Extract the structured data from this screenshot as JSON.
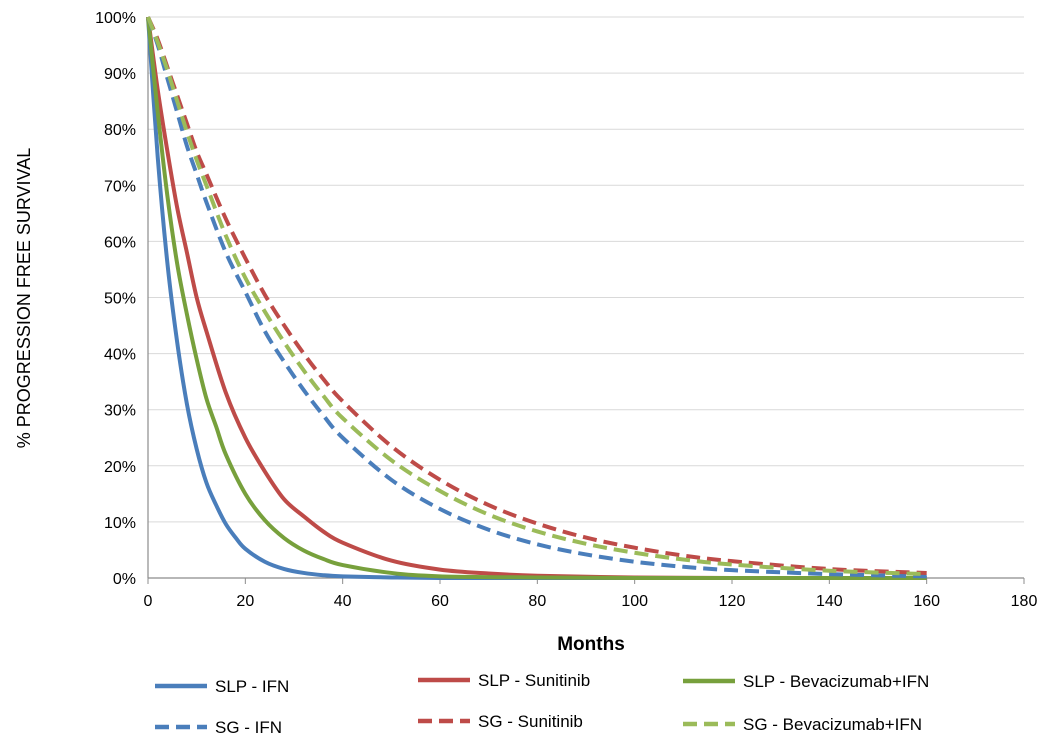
{
  "chart_data": {
    "type": "line",
    "xlabel": "Months",
    "ylabel": "% PROGRESSION FREE SURVIVAL",
    "xlim": [
      0,
      180
    ],
    "ylim": [
      0,
      100
    ],
    "x_ticks": [
      "0",
      "20",
      "40",
      "60",
      "80",
      "100",
      "120",
      "140",
      "160",
      "180"
    ],
    "y_ticks": [
      "0%",
      "10%",
      "20%",
      "30%",
      "40%",
      "50%",
      "60%",
      "70%",
      "80%",
      "90%",
      "100%"
    ],
    "grid": true,
    "legend_position": "bottom",
    "series": [
      {
        "name": "SLP - IFN",
        "color": "#4a7ebb",
        "dash": "solid",
        "x": [
          0,
          2,
          4,
          6,
          8,
          10,
          12,
          14,
          16,
          18,
          20,
          24,
          28,
          32,
          36,
          40,
          50,
          60,
          80,
          100,
          120,
          140,
          160
        ],
        "y": [
          100,
          75,
          56,
          42,
          31,
          23,
          17,
          13,
          9.6,
          7.2,
          5.2,
          2.9,
          1.6,
          0.9,
          0.5,
          0.3,
          0.1,
          0,
          0,
          0,
          0,
          0,
          0
        ]
      },
      {
        "name": "SLP - Sunitinib",
        "color": "#be4b48",
        "dash": "solid",
        "x": [
          0,
          2,
          4,
          6,
          8,
          10,
          12,
          16,
          20,
          24,
          28,
          32,
          36,
          40,
          50,
          60,
          70,
          80,
          100,
          120,
          140,
          160
        ],
        "y": [
          100,
          87,
          76,
          66,
          58,
          50,
          44,
          33,
          25,
          19,
          14,
          11,
          8.3,
          6.3,
          3.1,
          1.5,
          0.8,
          0.4,
          0.1,
          0,
          0,
          0
        ]
      },
      {
        "name": "SLP - Bevacizumab+IFN",
        "color": "#77a03c",
        "dash": "solid",
        "x": [
          0,
          2,
          4,
          6,
          8,
          10,
          12,
          14,
          16,
          20,
          24,
          28,
          32,
          36,
          40,
          50,
          60,
          80,
          100,
          120,
          140,
          160
        ],
        "y": [
          100,
          83,
          68,
          56,
          47,
          39,
          32,
          27,
          22,
          15,
          10.3,
          7.1,
          4.9,
          3.4,
          2.3,
          0.9,
          0.3,
          0.1,
          0,
          0,
          0,
          0
        ]
      },
      {
        "name": "SG - IFN",
        "color": "#4a7ebb",
        "dash": "dashed",
        "x": [
          0,
          2,
          4,
          6,
          8,
          10,
          12,
          16,
          20,
          24,
          28,
          32,
          36,
          40,
          50,
          60,
          70,
          80,
          90,
          100,
          110,
          120,
          140,
          160
        ],
        "y": [
          100,
          95,
          89,
          83,
          77,
          72,
          67,
          58,
          51,
          44,
          38.5,
          33.5,
          29,
          25,
          17.5,
          12.3,
          8.6,
          6.0,
          4.2,
          2.9,
          2.0,
          1.4,
          0.7,
          0.3
        ]
      },
      {
        "name": "SG - Sunitinib",
        "color": "#be4b48",
        "dash": "dashed",
        "x": [
          0,
          2,
          4,
          6,
          8,
          10,
          12,
          16,
          20,
          24,
          28,
          32,
          36,
          40,
          50,
          60,
          70,
          80,
          90,
          100,
          110,
          120,
          140,
          160
        ],
        "y": [
          100,
          96,
          91,
          86,
          81,
          76,
          72,
          64,
          57,
          50.5,
          45,
          40,
          35.5,
          31.5,
          23.5,
          17.5,
          13,
          9.7,
          7.2,
          5.4,
          4.0,
          3.0,
          1.6,
          0.9
        ]
      },
      {
        "name": "SG - Bevacizumab+IFN",
        "color": "#9bbb59",
        "dash": "dashed",
        "x": [
          0,
          2,
          4,
          6,
          8,
          10,
          12,
          16,
          20,
          24,
          28,
          32,
          36,
          40,
          50,
          60,
          70,
          80,
          90,
          100,
          110,
          120,
          140,
          160
        ],
        "y": [
          100,
          95.5,
          90.5,
          85,
          79.5,
          74.5,
          70,
          61,
          53.5,
          47.5,
          42,
          37,
          32.5,
          28.5,
          21,
          15.5,
          11.3,
          8.3,
          6.1,
          4.5,
          3.3,
          2.4,
          1.3,
          0.7
        ]
      }
    ]
  }
}
